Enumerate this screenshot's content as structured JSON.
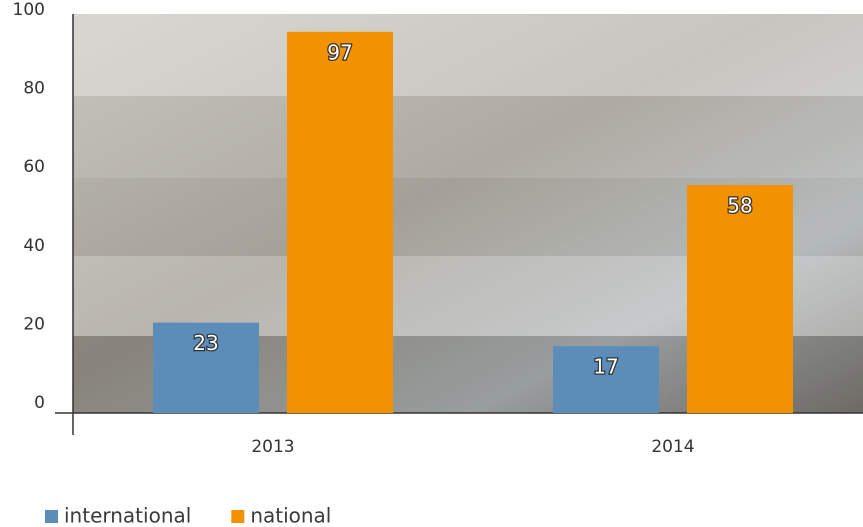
{
  "chart_data": {
    "type": "bar",
    "categories": [
      "2013",
      "2014"
    ],
    "series": [
      {
        "name": "international",
        "color": "#5b8db8",
        "values": [
          23,
          17
        ]
      },
      {
        "name": "national",
        "color": "#f39200",
        "values": [
          97,
          58
        ]
      }
    ],
    "ylim": [
      0,
      100
    ],
    "yticks": [
      0,
      20,
      40,
      60,
      80,
      100
    ],
    "legend": "bottom-left"
  }
}
